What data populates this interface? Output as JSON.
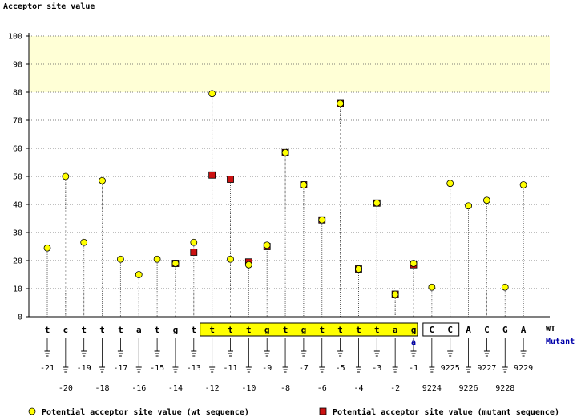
{
  "chart_data": {
    "type": "scatter",
    "title": "",
    "ylabel": "Acceptor site value",
    "ylim": [
      0,
      100
    ],
    "yticks": [
      0,
      10,
      20,
      30,
      40,
      50,
      60,
      70,
      80,
      90,
      100
    ],
    "grid": true,
    "highlight_band": [
      80,
      100
    ],
    "legend_position": "bottom",
    "row_labels": {
      "wt": "WT",
      "mutant": "Mutant"
    },
    "sequence": [
      "t",
      "c",
      "t",
      "t",
      "t",
      "a",
      "t",
      "g",
      "t",
      "t",
      "t",
      "t",
      "g",
      "t",
      "g",
      "t",
      "t",
      "t",
      "t",
      "a",
      "g",
      "C",
      "C",
      "A",
      "C",
      "G",
      "A"
    ],
    "positions": [
      "-21",
      "-20",
      "-19",
      "-18",
      "-17",
      "-16",
      "-15",
      "-14",
      "-13",
      "-12",
      "-11",
      "-10",
      "-9",
      "-8",
      "-7",
      "-6",
      "-5",
      "-4",
      "-3",
      "-2",
      "-1",
      "9224",
      "9225",
      "9226",
      "9227",
      "9228",
      "9229"
    ],
    "mutant_annotation": {
      "index": 20,
      "label": "a"
    },
    "boxed_intron_range": [
      9,
      20
    ],
    "boxed_exon_range": [
      21,
      22
    ],
    "series": [
      {
        "name": "Potential acceptor site value (wt sequence)",
        "color": "#ffff00",
        "marker": "circle",
        "values": [
          24.5,
          50,
          26.5,
          48.5,
          20.5,
          15,
          20.5,
          19,
          26.5,
          79.5,
          20.5,
          18.5,
          25.5,
          58.5,
          47,
          34.5,
          76,
          17,
          40.5,
          8,
          19,
          10.5,
          47.5,
          39.5,
          41.5,
          10.5,
          47
        ]
      },
      {
        "name": "Potential acceptor site value (mutant sequence)",
        "color": "#cc1111",
        "marker": "square",
        "values": [
          null,
          null,
          null,
          null,
          null,
          null,
          null,
          19,
          23,
          50.5,
          49,
          19.5,
          25,
          58.5,
          47,
          34.5,
          76,
          17,
          40.5,
          8,
          18.5,
          null,
          null,
          null,
          null,
          null,
          null
        ]
      }
    ]
  }
}
